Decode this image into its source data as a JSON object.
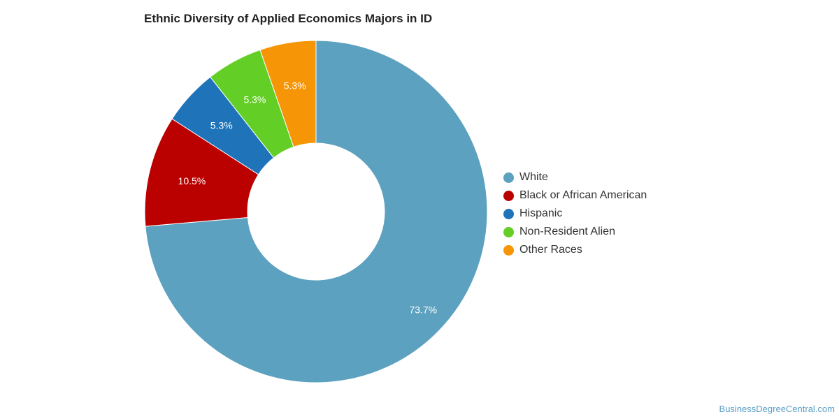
{
  "chart_data": {
    "type": "pie",
    "title": "Ethnic Diversity of Applied Economics Majors in ID",
    "categories": [
      "White",
      "Black or African American",
      "Hispanic",
      "Non-Resident Alien",
      "Other Races"
    ],
    "values": [
      73.7,
      10.5,
      5.3,
      5.3,
      5.3
    ],
    "value_labels": [
      "73.7%",
      "10.5%",
      "5.3%",
      "5.3%",
      "5.3%"
    ],
    "colors": [
      "#5ca1bf",
      "#bb0000",
      "#1f74b9",
      "#63cf26",
      "#f69506"
    ],
    "donut": true,
    "legend_placement": "right"
  },
  "legend": {
    "items": [
      {
        "label": "White",
        "color": "#5ca1bf"
      },
      {
        "label": "Black or African American",
        "color": "#bb0000"
      },
      {
        "label": "Hispanic",
        "color": "#1f74b9"
      },
      {
        "label": "Non-Resident Alien",
        "color": "#63cf26"
      },
      {
        "label": "Other Races",
        "color": "#f69506"
      }
    ]
  },
  "watermark": "BusinessDegreeCentral.com"
}
